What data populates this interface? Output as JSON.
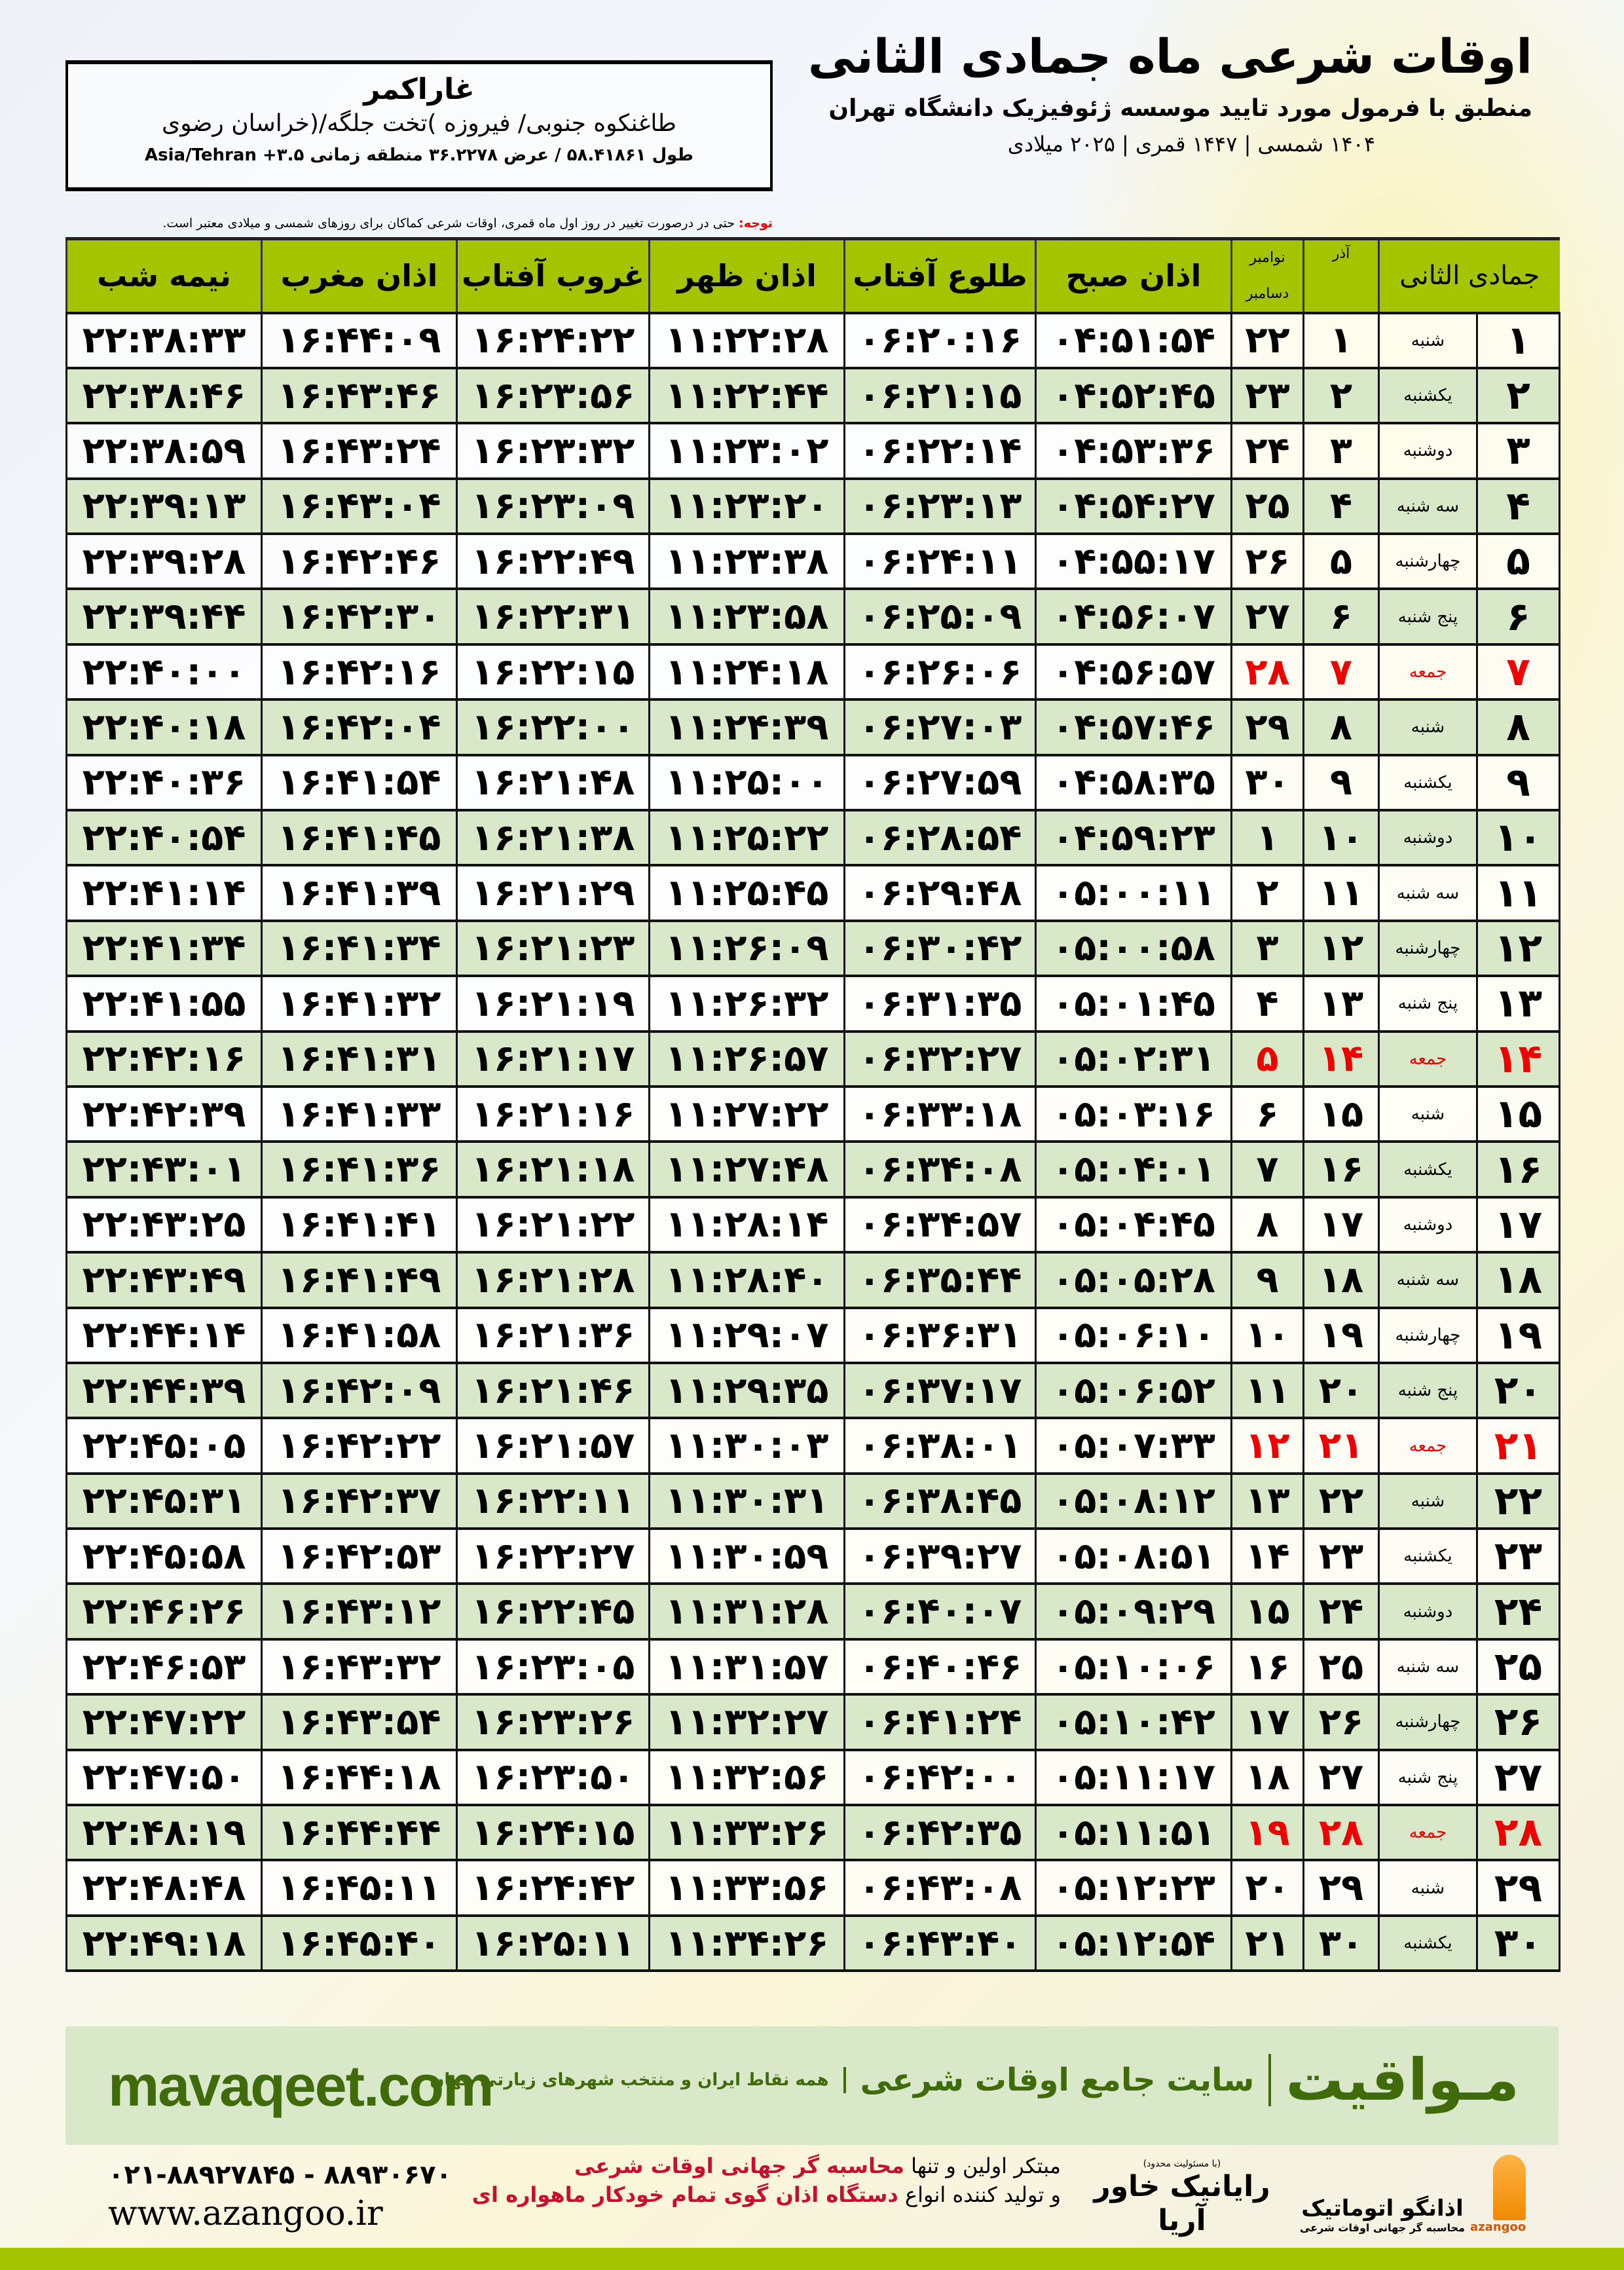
{
  "header": {
    "title": "اوقات شرعی ماه جمادی الثانی",
    "subtitle": "منطبق با فرمول مورد تایید موسسه ژئوفیزیک دانشگاه تهران",
    "dates": "۱۴۰۴ شمسی | ۱۴۴۷ قمری | ۲۰۲۵ میلادی"
  },
  "location": {
    "city": "غاراکمر",
    "region": "طاغنکوه جنوبی/ فیروزه )تخت جلگه/(خراسان رضوی",
    "coords": "طول ۵۸.۴۱۸۶۱ / عرض ۳۶.۲۲۷۸ منطقه زمانی ۳.۵+ Asia/Tehran"
  },
  "note": {
    "label": "توجه:",
    "text": " حتی در درصورت تغییر در روز اول ماه قمری، اوقات شرعی کماکان برای روزهای شمسی و میلادی معتبر است."
  },
  "columns": {
    "midnight": "نیمه شب",
    "maghrib": "اذان مغرب",
    "sunset": "غروب آفتاب",
    "dhuhr": "اذان ظهر",
    "sunrise": "طلوع آفتاب",
    "fajr": "اذان صبح",
    "greg_top": "نوامبر",
    "greg_bottom": "دسامبر",
    "shamsi": "آذر",
    "month": "جمادی الثانی"
  },
  "colors": {
    "header_green": "#a4c400",
    "row_green": "#d8e8c8",
    "friday_red": "#e00000",
    "brand_green": "#3f6b0a"
  },
  "rows": [
    {
      "day": "۱",
      "dayname": "شنبه",
      "azar": "۱",
      "greg": "۲۲",
      "fajr": "۰۴:۵۱:۵۴",
      "sunrise": "۰۶:۲۰:۱۶",
      "dhuhr": "۱۱:۲۲:۲۸",
      "sunset": "۱۶:۲۴:۲۲",
      "maghrib": "۱۶:۴۴:۰۹",
      "midnight": "۲۲:۳۸:۳۳"
    },
    {
      "day": "۲",
      "dayname": "یکشنبه",
      "azar": "۲",
      "greg": "۲۳",
      "fajr": "۰۴:۵۲:۴۵",
      "sunrise": "۰۶:۲۱:۱۵",
      "dhuhr": "۱۱:۲۲:۴۴",
      "sunset": "۱۶:۲۳:۵۶",
      "maghrib": "۱۶:۴۳:۴۶",
      "midnight": "۲۲:۳۸:۴۶"
    },
    {
      "day": "۳",
      "dayname": "دوشنبه",
      "azar": "۳",
      "greg": "۲۴",
      "fajr": "۰۴:۵۳:۳۶",
      "sunrise": "۰۶:۲۲:۱۴",
      "dhuhr": "۱۱:۲۳:۰۲",
      "sunset": "۱۶:۲۳:۳۲",
      "maghrib": "۱۶:۴۳:۲۴",
      "midnight": "۲۲:۳۸:۵۹"
    },
    {
      "day": "۴",
      "dayname": "سه شنبه",
      "azar": "۴",
      "greg": "۲۵",
      "fajr": "۰۴:۵۴:۲۷",
      "sunrise": "۰۶:۲۳:۱۳",
      "dhuhr": "۱۱:۲۳:۲۰",
      "sunset": "۱۶:۲۳:۰۹",
      "maghrib": "۱۶:۴۳:۰۴",
      "midnight": "۲۲:۳۹:۱۳"
    },
    {
      "day": "۵",
      "dayname": "چهارشنبه",
      "azar": "۵",
      "greg": "۲۶",
      "fajr": "۰۴:۵۵:۱۷",
      "sunrise": "۰۶:۲۴:۱۱",
      "dhuhr": "۱۱:۲۳:۳۸",
      "sunset": "۱۶:۲۲:۴۹",
      "maghrib": "۱۶:۴۲:۴۶",
      "midnight": "۲۲:۳۹:۲۸"
    },
    {
      "day": "۶",
      "dayname": "پنج شنبه",
      "azar": "۶",
      "greg": "۲۷",
      "fajr": "۰۴:۵۶:۰۷",
      "sunrise": "۰۶:۲۵:۰۹",
      "dhuhr": "۱۱:۲۳:۵۸",
      "sunset": "۱۶:۲۲:۳۱",
      "maghrib": "۱۶:۴۲:۳۰",
      "midnight": "۲۲:۳۹:۴۴"
    },
    {
      "day": "۷",
      "dayname": "جمعه",
      "azar": "۷",
      "greg": "۲۸",
      "fajr": "۰۴:۵۶:۵۷",
      "sunrise": "۰۶:۲۶:۰۶",
      "dhuhr": "۱۱:۲۴:۱۸",
      "sunset": "۱۶:۲۲:۱۵",
      "maghrib": "۱۶:۴۲:۱۶",
      "midnight": "۲۲:۴۰:۰۰",
      "friday": true
    },
    {
      "day": "۸",
      "dayname": "شنبه",
      "azar": "۸",
      "greg": "۲۹",
      "fajr": "۰۴:۵۷:۴۶",
      "sunrise": "۰۶:۲۷:۰۳",
      "dhuhr": "۱۱:۲۴:۳۹",
      "sunset": "۱۶:۲۲:۰۰",
      "maghrib": "۱۶:۴۲:۰۴",
      "midnight": "۲۲:۴۰:۱۸"
    },
    {
      "day": "۹",
      "dayname": "یکشنبه",
      "azar": "۹",
      "greg": "۳۰",
      "fajr": "۰۴:۵۸:۳۵",
      "sunrise": "۰۶:۲۷:۵۹",
      "dhuhr": "۱۱:۲۵:۰۰",
      "sunset": "۱۶:۲۱:۴۸",
      "maghrib": "۱۶:۴۱:۵۴",
      "midnight": "۲۲:۴۰:۳۶"
    },
    {
      "day": "۱۰",
      "dayname": "دوشنبه",
      "azar": "۱۰",
      "greg": "۱",
      "fajr": "۰۴:۵۹:۲۳",
      "sunrise": "۰۶:۲۸:۵۴",
      "dhuhr": "۱۱:۲۵:۲۲",
      "sunset": "۱۶:۲۱:۳۸",
      "maghrib": "۱۶:۴۱:۴۵",
      "midnight": "۲۲:۴۰:۵۴"
    },
    {
      "day": "۱۱",
      "dayname": "سه شنبه",
      "azar": "۱۱",
      "greg": "۲",
      "fajr": "۰۵:۰۰:۱۱",
      "sunrise": "۰۶:۲۹:۴۸",
      "dhuhr": "۱۱:۲۵:۴۵",
      "sunset": "۱۶:۲۱:۲۹",
      "maghrib": "۱۶:۴۱:۳۹",
      "midnight": "۲۲:۴۱:۱۴"
    },
    {
      "day": "۱۲",
      "dayname": "چهارشنبه",
      "azar": "۱۲",
      "greg": "۳",
      "fajr": "۰۵:۰۰:۵۸",
      "sunrise": "۰۶:۳۰:۴۲",
      "dhuhr": "۱۱:۲۶:۰۹",
      "sunset": "۱۶:۲۱:۲۳",
      "maghrib": "۱۶:۴۱:۳۴",
      "midnight": "۲۲:۴۱:۳۴"
    },
    {
      "day": "۱۳",
      "dayname": "پنج شنبه",
      "azar": "۱۳",
      "greg": "۴",
      "fajr": "۰۵:۰۱:۴۵",
      "sunrise": "۰۶:۳۱:۳۵",
      "dhuhr": "۱۱:۲۶:۳۲",
      "sunset": "۱۶:۲۱:۱۹",
      "maghrib": "۱۶:۴۱:۳۲",
      "midnight": "۲۲:۴۱:۵۵"
    },
    {
      "day": "۱۴",
      "dayname": "جمعه",
      "azar": "۱۴",
      "greg": "۵",
      "fajr": "۰۵:۰۲:۳۱",
      "sunrise": "۰۶:۳۲:۲۷",
      "dhuhr": "۱۱:۲۶:۵۷",
      "sunset": "۱۶:۲۱:۱۷",
      "maghrib": "۱۶:۴۱:۳۱",
      "midnight": "۲۲:۴۲:۱۶",
      "friday": true
    },
    {
      "day": "۱۵",
      "dayname": "شنبه",
      "azar": "۱۵",
      "greg": "۶",
      "fajr": "۰۵:۰۳:۱۶",
      "sunrise": "۰۶:۳۳:۱۸",
      "dhuhr": "۱۱:۲۷:۲۲",
      "sunset": "۱۶:۲۱:۱۶",
      "maghrib": "۱۶:۴۱:۳۳",
      "midnight": "۲۲:۴۲:۳۹"
    },
    {
      "day": "۱۶",
      "dayname": "یکشنبه",
      "azar": "۱۶",
      "greg": "۷",
      "fajr": "۰۵:۰۴:۰۱",
      "sunrise": "۰۶:۳۴:۰۸",
      "dhuhr": "۱۱:۲۷:۴۸",
      "sunset": "۱۶:۲۱:۱۸",
      "maghrib": "۱۶:۴۱:۳۶",
      "midnight": "۲۲:۴۳:۰۱"
    },
    {
      "day": "۱۷",
      "dayname": "دوشنبه",
      "azar": "۱۷",
      "greg": "۸",
      "fajr": "۰۵:۰۴:۴۵",
      "sunrise": "۰۶:۳۴:۵۷",
      "dhuhr": "۱۱:۲۸:۱۴",
      "sunset": "۱۶:۲۱:۲۲",
      "maghrib": "۱۶:۴۱:۴۱",
      "midnight": "۲۲:۴۳:۲۵"
    },
    {
      "day": "۱۸",
      "dayname": "سه شنبه",
      "azar": "۱۸",
      "greg": "۹",
      "fajr": "۰۵:۰۵:۲۸",
      "sunrise": "۰۶:۳۵:۴۴",
      "dhuhr": "۱۱:۲۸:۴۰",
      "sunset": "۱۶:۲۱:۲۸",
      "maghrib": "۱۶:۴۱:۴۹",
      "midnight": "۲۲:۴۳:۴۹"
    },
    {
      "day": "۱۹",
      "dayname": "چهارشنبه",
      "azar": "۱۹",
      "greg": "۱۰",
      "fajr": "۰۵:۰۶:۱۰",
      "sunrise": "۰۶:۳۶:۳۱",
      "dhuhr": "۱۱:۲۹:۰۷",
      "sunset": "۱۶:۲۱:۳۶",
      "maghrib": "۱۶:۴۱:۵۸",
      "midnight": "۲۲:۴۴:۱۴"
    },
    {
      "day": "۲۰",
      "dayname": "پنج شنبه",
      "azar": "۲۰",
      "greg": "۱۱",
      "fajr": "۰۵:۰۶:۵۲",
      "sunrise": "۰۶:۳۷:۱۷",
      "dhuhr": "۱۱:۲۹:۳۵",
      "sunset": "۱۶:۲۱:۴۶",
      "maghrib": "۱۶:۴۲:۰۹",
      "midnight": "۲۲:۴۴:۳۹"
    },
    {
      "day": "۲۱",
      "dayname": "جمعه",
      "azar": "۲۱",
      "greg": "۱۲",
      "fajr": "۰۵:۰۷:۳۳",
      "sunrise": "۰۶:۳۸:۰۱",
      "dhuhr": "۱۱:۳۰:۰۳",
      "sunset": "۱۶:۲۱:۵۷",
      "maghrib": "۱۶:۴۲:۲۲",
      "midnight": "۲۲:۴۵:۰۵",
      "friday": true
    },
    {
      "day": "۲۲",
      "dayname": "شنبه",
      "azar": "۲۲",
      "greg": "۱۳",
      "fajr": "۰۵:۰۸:۱۲",
      "sunrise": "۰۶:۳۸:۴۵",
      "dhuhr": "۱۱:۳۰:۳۱",
      "sunset": "۱۶:۲۲:۱۱",
      "maghrib": "۱۶:۴۲:۳۷",
      "midnight": "۲۲:۴۵:۳۱"
    },
    {
      "day": "۲۳",
      "dayname": "یکشنبه",
      "azar": "۲۳",
      "greg": "۱۴",
      "fajr": "۰۵:۰۸:۵۱",
      "sunrise": "۰۶:۳۹:۲۷",
      "dhuhr": "۱۱:۳۰:۵۹",
      "sunset": "۱۶:۲۲:۲۷",
      "maghrib": "۱۶:۴۲:۵۳",
      "midnight": "۲۲:۴۵:۵۸"
    },
    {
      "day": "۲۴",
      "dayname": "دوشنبه",
      "azar": "۲۴",
      "greg": "۱۵",
      "fajr": "۰۵:۰۹:۲۹",
      "sunrise": "۰۶:۴۰:۰۷",
      "dhuhr": "۱۱:۳۱:۲۸",
      "sunset": "۱۶:۲۲:۴۵",
      "maghrib": "۱۶:۴۳:۱۲",
      "midnight": "۲۲:۴۶:۲۶"
    },
    {
      "day": "۲۵",
      "dayname": "سه شنبه",
      "azar": "۲۵",
      "greg": "۱۶",
      "fajr": "۰۵:۱۰:۰۶",
      "sunrise": "۰۶:۴۰:۴۶",
      "dhuhr": "۱۱:۳۱:۵۷",
      "sunset": "۱۶:۲۳:۰۵",
      "maghrib": "۱۶:۴۳:۳۲",
      "midnight": "۲۲:۴۶:۵۳"
    },
    {
      "day": "۲۶",
      "dayname": "چهارشنبه",
      "azar": "۲۶",
      "greg": "۱۷",
      "fajr": "۰۵:۱۰:۴۲",
      "sunrise": "۰۶:۴۱:۲۴",
      "dhuhr": "۱۱:۳۲:۲۷",
      "sunset": "۱۶:۲۳:۲۶",
      "maghrib": "۱۶:۴۳:۵۴",
      "midnight": "۲۲:۴۷:۲۲"
    },
    {
      "day": "۲۷",
      "dayname": "پنج شنبه",
      "azar": "۲۷",
      "greg": "۱۸",
      "fajr": "۰۵:۱۱:۱۷",
      "sunrise": "۰۶:۴۲:۰۰",
      "dhuhr": "۱۱:۳۲:۵۶",
      "sunset": "۱۶:۲۳:۵۰",
      "maghrib": "۱۶:۴۴:۱۸",
      "midnight": "۲۲:۴۷:۵۰"
    },
    {
      "day": "۲۸",
      "dayname": "جمعه",
      "azar": "۲۸",
      "greg": "۱۹",
      "fajr": "۰۵:۱۱:۵۱",
      "sunrise": "۰۶:۴۲:۳۵",
      "dhuhr": "۱۱:۳۳:۲۶",
      "sunset": "۱۶:۲۴:۱۵",
      "maghrib": "۱۶:۴۴:۴۴",
      "midnight": "۲۲:۴۸:۱۹",
      "friday": true
    },
    {
      "day": "۲۹",
      "dayname": "شنبه",
      "azar": "۲۹",
      "greg": "۲۰",
      "fajr": "۰۵:۱۲:۲۳",
      "sunrise": "۰۶:۴۳:۰۸",
      "dhuhr": "۱۱:۳۳:۵۶",
      "sunset": "۱۶:۲۴:۴۲",
      "maghrib": "۱۶:۴۵:۱۱",
      "midnight": "۲۲:۴۸:۴۸"
    },
    {
      "day": "۳۰",
      "dayname": "یکشنبه",
      "azar": "۳۰",
      "greg": "۲۱",
      "fajr": "۰۵:۱۲:۵۴",
      "sunrise": "۰۶:۴۳:۴۰",
      "dhuhr": "۱۱:۳۴:۲۶",
      "sunset": "۱۶:۲۵:۱۱",
      "maghrib": "۱۶:۴۵:۴۰",
      "midnight": "۲۲:۴۹:۱۸"
    }
  ],
  "banner": {
    "site": "mavaqeet.com",
    "brand": "مـواقیت",
    "tagline": "سایت جامع اوقات شرعی",
    "subtag": "همه نقاط ایران و منتخب شهرهای زیارتی جهان"
  },
  "footer": {
    "phone": "۰۲۱-۸۸۹۲۷۸۴۵ - ۸۸۹۳۰۶۷۰",
    "www": "www.azangoo.ir",
    "ad_line1_a": "مبتکر اولین و تنها ",
    "ad_line1_b": "محاسبه گر جهانی اوقات شرعی",
    "ad_line2_a": "و تولید کننده انواع ",
    "ad_line2_b": "دستگاه اذان گوی تمام خودکار ماهواره ای",
    "logo2_small": "(با مسئولیت محدود)",
    "logo2": "رایانیک خاور آریا",
    "logo1": "اذانگو اتوماتیک",
    "logo1_sub": "محاسبه گر جهانی اوقات شرعی",
    "logo1_en": "azangoo"
  }
}
